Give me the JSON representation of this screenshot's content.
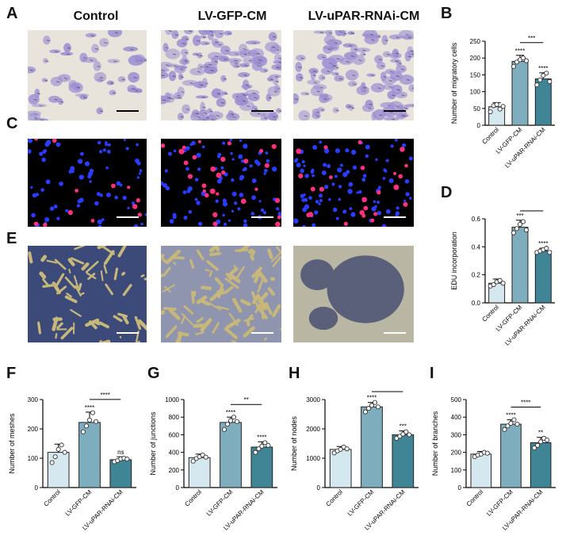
{
  "figure": {
    "column_titles": [
      "Control",
      "LV-GFP-CM",
      "LV-uPAR-RNAi-CM"
    ],
    "panel_letters": {
      "A": "A",
      "B": "B",
      "C": "C",
      "D": "D",
      "E": "E",
      "F": "F",
      "G": "G",
      "H": "H",
      "I": "I"
    },
    "image_rows": [
      {
        "panel": "A",
        "stain": "crystal violet transwell",
        "background": "#e8e4dc",
        "cell_color": "#9d8fd3"
      },
      {
        "panel": "C",
        "stain": "EdU / DAPI fluorescence",
        "background": "#000000",
        "cell_color": "#2a3cff",
        "edu_color": "#ff2f7f"
      },
      {
        "panel": "E",
        "stain": "tube formation",
        "background": "#3b4a78",
        "cell_color": "#c7b77a"
      }
    ],
    "bar_colors": [
      "#d6e8ef",
      "#7eaebe",
      "#3f8596"
    ]
  },
  "chart_data": [
    {
      "panel": "B",
      "type": "bar",
      "categories": [
        "Control",
        "LV-GFP-CM",
        "LV-uPAR-RNAi-CM"
      ],
      "values": [
        55,
        190,
        138
      ],
      "errors": [
        12,
        18,
        18
      ],
      "points": [
        [
          40,
          58,
          62,
          48,
          56
        ],
        [
          175,
          188,
          195,
          200,
          192
        ],
        [
          120,
          135,
          148,
          155,
          130
        ]
      ],
      "ylabel": "Number of migratory cells",
      "ylim": [
        0,
        250
      ],
      "yticks": [
        0,
        50,
        100,
        150,
        200,
        250
      ],
      "sig": [
        "",
        "****",
        "****"
      ],
      "bracket": {
        "from": 1,
        "to": 2,
        "label": "***"
      }
    },
    {
      "panel": "D",
      "type": "bar",
      "categories": [
        "Control",
        "LV-GFP-CM",
        "LV-uPAR-RNAi-CM"
      ],
      "values": [
        0.14,
        0.54,
        0.37
      ],
      "errors": [
        0.03,
        0.05,
        0.02
      ],
      "points": [
        [
          0.12,
          0.13,
          0.15,
          0.16,
          0.14
        ],
        [
          0.5,
          0.53,
          0.56,
          0.58,
          0.52
        ],
        [
          0.36,
          0.37,
          0.38,
          0.39,
          0.36
        ]
      ],
      "ylabel": "EDU incorporation",
      "ylim": [
        0,
        0.6
      ],
      "yticks": [
        0.0,
        0.2,
        0.4,
        0.6
      ],
      "sig": [
        "",
        "***",
        "****"
      ],
      "bracket": {
        "from": 1,
        "to": 2,
        "label": "**"
      }
    },
    {
      "panel": "F",
      "type": "bar",
      "categories": [
        "Control",
        "LV-GFP-CM",
        "LV-uPAR-RNAi-CM"
      ],
      "values": [
        120,
        222,
        95
      ],
      "errors": [
        28,
        35,
        10
      ],
      "points": [
        [
          85,
          105,
          130,
          145,
          120
        ],
        [
          190,
          210,
          230,
          255,
          225
        ],
        [
          88,
          92,
          98,
          100,
          97
        ]
      ],
      "ylabel": "Number of meshes",
      "ylim": [
        0,
        300
      ],
      "yticks": [
        0,
        100,
        200,
        300
      ],
      "sig": [
        "",
        "****",
        "ns"
      ],
      "bracket": {
        "from": 1,
        "to": 2,
        "label": "****"
      }
    },
    {
      "panel": "G",
      "type": "bar",
      "categories": [
        "Control",
        "LV-GFP-CM",
        "LV-uPAR-RNAi-CM"
      ],
      "values": [
        340,
        740,
        460
      ],
      "errors": [
        40,
        60,
        60
      ],
      "points": [
        [
          300,
          330,
          350,
          370,
          345
        ],
        [
          660,
          720,
          760,
          800,
          750
        ],
        [
          400,
          440,
          470,
          510,
          480
        ]
      ],
      "ylabel": "Number of junctions",
      "ylim": [
        0,
        1000
      ],
      "yticks": [
        0,
        200,
        400,
        600,
        800,
        1000
      ],
      "sig": [
        "",
        "****",
        "****"
      ],
      "bracket": {
        "from": 1,
        "to": 2,
        "label": "**"
      }
    },
    {
      "panel": "H",
      "type": "bar",
      "categories": [
        "Control",
        "LV-GFP-CM",
        "LV-uPAR-RNAi-CM"
      ],
      "values": [
        1300,
        2750,
        1800
      ],
      "errors": [
        100,
        150,
        130
      ],
      "points": [
        [
          1180,
          1250,
          1300,
          1380,
          1320
        ],
        [
          2580,
          2700,
          2800,
          2900,
          2750
        ],
        [
          1680,
          1750,
          1820,
          1900,
          1800
        ]
      ],
      "ylabel": "Number of nodes",
      "ylim": [
        0,
        3000
      ],
      "yticks": [
        0,
        1000,
        2000,
        3000
      ],
      "sig": [
        "",
        "****",
        "***"
      ],
      "bracket": {
        "from": 1,
        "to": 2,
        "label": "****"
      }
    },
    {
      "panel": "I",
      "type": "bar",
      "categories": [
        "Control",
        "LV-GFP-CM",
        "LV-uPAR-RNAi-CM"
      ],
      "values": [
        190,
        360,
        255
      ],
      "errors": [
        15,
        25,
        30
      ],
      "points": [
        [
          175,
          185,
          190,
          200,
          195
        ],
        [
          330,
          350,
          365,
          385,
          360
        ],
        [
          225,
          240,
          260,
          280,
          270
        ]
      ],
      "ylabel": "Number of branches",
      "ylim": [
        0,
        500
      ],
      "yticks": [
        0,
        100,
        200,
        300,
        400,
        500
      ],
      "sig": [
        "",
        "****",
        "**"
      ],
      "bracket": {
        "from": 1,
        "to": 2,
        "label": "****"
      }
    }
  ]
}
